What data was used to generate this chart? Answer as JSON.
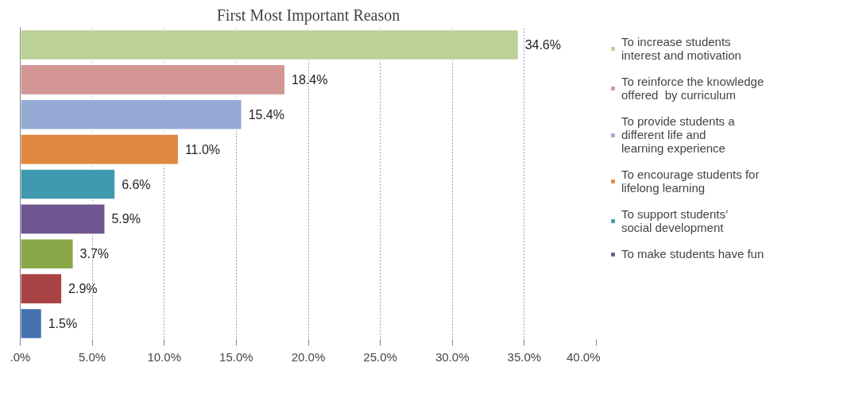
{
  "chart_data": {
    "type": "bar",
    "orientation": "horizontal",
    "title": "First Most Important Reason",
    "categories": [
      null,
      null,
      null,
      null,
      null,
      null,
      null,
      null,
      null
    ],
    "series": [
      {
        "name": "To increase students interest and motivation",
        "color": "#bbd197",
        "values": [
          34.6,
          null,
          null,
          null,
          null,
          null,
          null,
          null,
          null
        ],
        "value_labels": [
          "34.6%",
          null,
          null,
          null,
          null,
          null,
          null,
          null,
          null
        ]
      },
      {
        "name": "To reinforce the knowledge offered  by curriculum",
        "color": "#d49595",
        "values": [
          null,
          18.4,
          null,
          null,
          null,
          null,
          null,
          null,
          null
        ],
        "value_labels": [
          null,
          "18.4%",
          null,
          null,
          null,
          null,
          null,
          null,
          null
        ]
      },
      {
        "name": "To provide students a different life and learning experience",
        "color": "#95abd5",
        "values": [
          null,
          null,
          15.4,
          null,
          null,
          null,
          null,
          null,
          null
        ],
        "value_labels": [
          null,
          null,
          "15.4%",
          null,
          null,
          null,
          null,
          null,
          null
        ]
      },
      {
        "name": "To encourage students for lifelong learning",
        "color": "#e0883f",
        "values": [
          null,
          null,
          null,
          11.0,
          null,
          null,
          null,
          null,
          null
        ],
        "value_labels": [
          null,
          null,
          null,
          "11.0%",
          null,
          null,
          null,
          null,
          null
        ]
      },
      {
        "name": "To support students’ social development",
        "color": "#3f9ab0",
        "values": [
          null,
          null,
          null,
          null,
          6.6,
          null,
          null,
          null,
          null
        ],
        "value_labels": [
          null,
          null,
          null,
          null,
          "6.6%",
          null,
          null,
          null,
          null
        ]
      },
      {
        "name": "To make students have fun",
        "color": "#705590",
        "values": [
          null,
          null,
          null,
          null,
          null,
          5.9,
          null,
          null,
          null
        ],
        "value_labels": [
          null,
          null,
          null,
          null,
          null,
          "5.9%",
          null,
          null,
          null
        ]
      },
      {
        "color": "#8aa84a",
        "values": [
          null,
          null,
          null,
          null,
          null,
          null,
          3.7,
          null,
          null
        ],
        "value_labels": [
          null,
          null,
          null,
          null,
          null,
          null,
          "3.7%",
          null,
          null
        ]
      },
      {
        "color": "#aa4444",
        "values": [
          null,
          null,
          null,
          null,
          null,
          null,
          null,
          2.9,
          null
        ],
        "value_labels": [
          null,
          null,
          null,
          null,
          null,
          null,
          null,
          "2.9%",
          null
        ]
      },
      {
        "color": "#4472b0",
        "values": [
          null,
          null,
          null,
          null,
          null,
          null,
          null,
          null,
          1.5
        ],
        "value_labels": [
          null,
          null,
          null,
          null,
          null,
          null,
          null,
          null,
          "1.5%"
        ]
      }
    ],
    "xlim": [
      0,
      40
    ],
    "xticks": [
      {
        "value": 0,
        "label": ".0%"
      },
      {
        "value": 5,
        "label": "5.0%"
      },
      {
        "value": 10,
        "label": "10.0%"
      },
      {
        "value": 15,
        "label": "15.0%"
      },
      {
        "value": 20,
        "label": "20.0%"
      },
      {
        "value": 25,
        "label": "25.0%"
      },
      {
        "value": 30,
        "label": "30.0%"
      },
      {
        "value": 35,
        "label": "35.0%"
      },
      {
        "value": 40,
        "label": "40.0%"
      }
    ],
    "grid": "x",
    "legend": "right"
  }
}
